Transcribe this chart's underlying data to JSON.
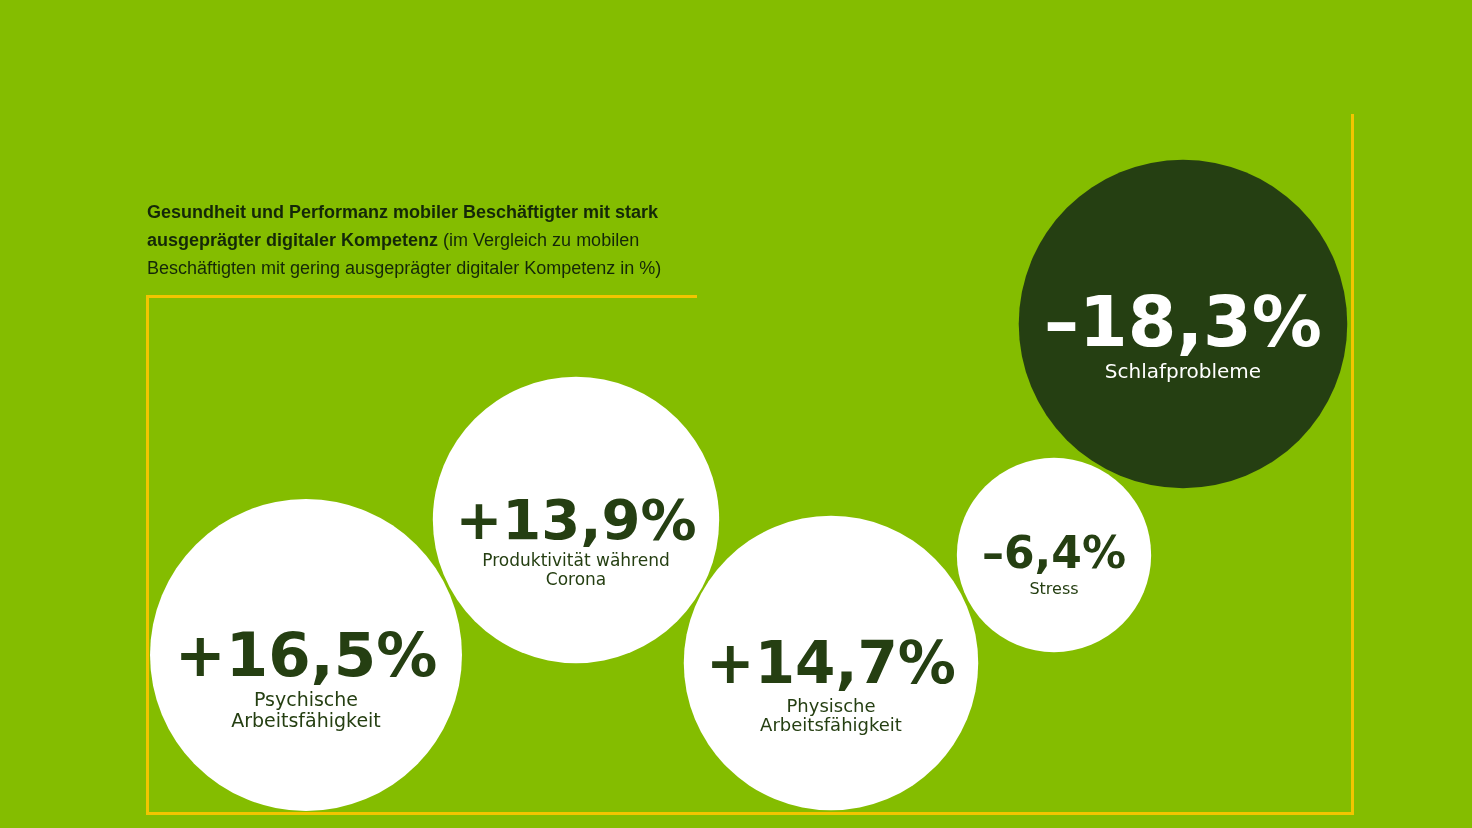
{
  "chart_data": {
    "type": "other",
    "title": "Gesundheit und Performanz mobiler Beschäftigter mit stark ausgeprägter digitaler Kompetenz",
    "subtitle": "(im Vergleich zu mobilen Beschäftigten mit gering ausgeprägter digitaler Kompetenz in %)",
    "categories": [
      "Psychische Arbeitsfähigkeit",
      "Produktivität während Corona",
      "Physische Arbeitsfähigkeit",
      "Stress",
      "Schlafprobleme"
    ],
    "values": [
      16.5,
      13.9,
      14.7,
      -6.4,
      -18.3
    ],
    "value_labels": [
      "+16,5%",
      "+13,9%",
      "+14,7%",
      "–6,4%",
      "–18,3%"
    ],
    "colors": [
      "#ffffff",
      "#ffffff",
      "#ffffff",
      "#ffffff",
      "#253f12"
    ]
  }
}
